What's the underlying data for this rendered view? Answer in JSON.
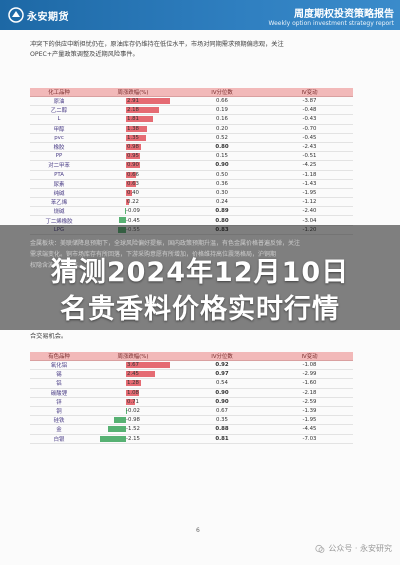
{
  "header": {
    "logo_text": "永安期货",
    "title": "周度期权投资策略报告",
    "subtitle": "Weekly option investment strategy report"
  },
  "para_top": [
    "冲突下的供应中断担忧仍在，原油库存仍维持在低位水平，市场对同期需求预期偏悲观，关注",
    "OPEC+产量政策调整及近期风险事件。"
  ],
  "table1": {
    "headers": [
      "化工品种",
      "周涨跌幅(%)",
      "IV分位数",
      "IV变动"
    ],
    "rows": [
      {
        "name": "原油",
        "chg": "2.91",
        "iv": "0.66",
        "ivchg": "-3.87",
        "bold": false
      },
      {
        "name": "乙二醇",
        "chg": "2.18",
        "iv": "0.19",
        "ivchg": "-0.48",
        "bold": false
      },
      {
        "name": "L",
        "chg": "1.81",
        "iv": "0.16",
        "ivchg": "-0.43",
        "bold": false
      },
      {
        "name": "甲醇",
        "chg": "1.38",
        "iv": "0.20",
        "ivchg": "-0.70",
        "bold": false
      },
      {
        "name": "pvc",
        "chg": "1.35",
        "iv": "0.52",
        "ivchg": "-0.45",
        "bold": false
      },
      {
        "name": "橡胶",
        "chg": "0.98",
        "iv": "0.80",
        "ivchg": "-2.43",
        "bold": true
      },
      {
        "name": "PP",
        "chg": "0.95",
        "iv": "0.15",
        "ivchg": "-0.51",
        "bold": false
      },
      {
        "name": "对二甲苯",
        "chg": "0.90",
        "iv": "0.90",
        "ivchg": "-4.25",
        "bold": true
      },
      {
        "name": "PTA",
        "chg": "0.66",
        "iv": "0.50",
        "ivchg": "-1.18",
        "bold": false
      },
      {
        "name": "尿素",
        "chg": "0.63",
        "iv": "0.36",
        "ivchg": "-1.43",
        "bold": false
      },
      {
        "name": "纯碱",
        "chg": "0.40",
        "iv": "0.30",
        "ivchg": "-1.95",
        "bold": false
      },
      {
        "name": "苯乙烯",
        "chg": "0.22",
        "iv": "0.24",
        "ivchg": "-1.12",
        "bold": false
      },
      {
        "name": "烧碱",
        "chg": "-0.09",
        "iv": "0.89",
        "ivchg": "-2.40",
        "bold": true
      },
      {
        "name": "丁二烯橡胶",
        "chg": "-0.45",
        "iv": "0.80",
        "ivchg": "-3.04",
        "bold": true
      },
      {
        "name": "LPG",
        "chg": "-0.55",
        "iv": "0.83",
        "ivchg": "-1.20",
        "bold": true
      }
    ]
  },
  "overlay_para": [
    "金属板块：美联储降息预期下，全球风险偏好提振，国内政策预期升温，有色金属价格普遍反弹，关注",
    "需求端变化。铜市场库存有所回落，下游采购意愿有所增加，价格维持高位震荡格局，沪铜期",
    "权隐含波动率回落。"
  ],
  "headline": [
    "猜测2024年12月10日",
    "名贵香料价格实时行情"
  ],
  "para_mid": [
    "合交易机会。"
  ],
  "table2": {
    "headers": [
      "有色品种",
      "周涨跌幅(%)",
      "IV分位数",
      "IV变动"
    ],
    "rows": [
      {
        "name": "氧化铝",
        "chg": "3.67",
        "iv": "0.92",
        "ivchg": "-1.08",
        "bold": true
      },
      {
        "name": "锡",
        "chg": "2.45",
        "iv": "0.97",
        "ivchg": "-2.99",
        "bold": true
      },
      {
        "name": "铝",
        "chg": "1.28",
        "iv": "0.54",
        "ivchg": "-1.60",
        "bold": false
      },
      {
        "name": "碳酸锂",
        "chg": "1.08",
        "iv": "0.90",
        "ivchg": "-2.18",
        "bold": true
      },
      {
        "name": "锌",
        "chg": "0.71",
        "iv": "0.90",
        "ivchg": "-2.59",
        "bold": true
      },
      {
        "name": "铜",
        "chg": "-0.02",
        "iv": "0.67",
        "ivchg": "-1.39",
        "bold": false
      },
      {
        "name": "硅铁",
        "chg": "-0.98",
        "iv": "0.35",
        "ivchg": "-1.95",
        "bold": false
      },
      {
        "name": "金",
        "chg": "-1.52",
        "iv": "0.88",
        "ivchg": "-4.45",
        "bold": true
      },
      {
        "name": "白银",
        "chg": "-2.15",
        "iv": "0.81",
        "ivchg": "-7.03",
        "bold": true
      }
    ]
  },
  "page_number": "6",
  "watermark": "公众号 · 永安研究",
  "colors": {
    "pos_bar": "#e0515a",
    "neg_bar": "#3aa35b",
    "header_bg": "#2a78b8",
    "table_head": "#f2b9b9"
  }
}
